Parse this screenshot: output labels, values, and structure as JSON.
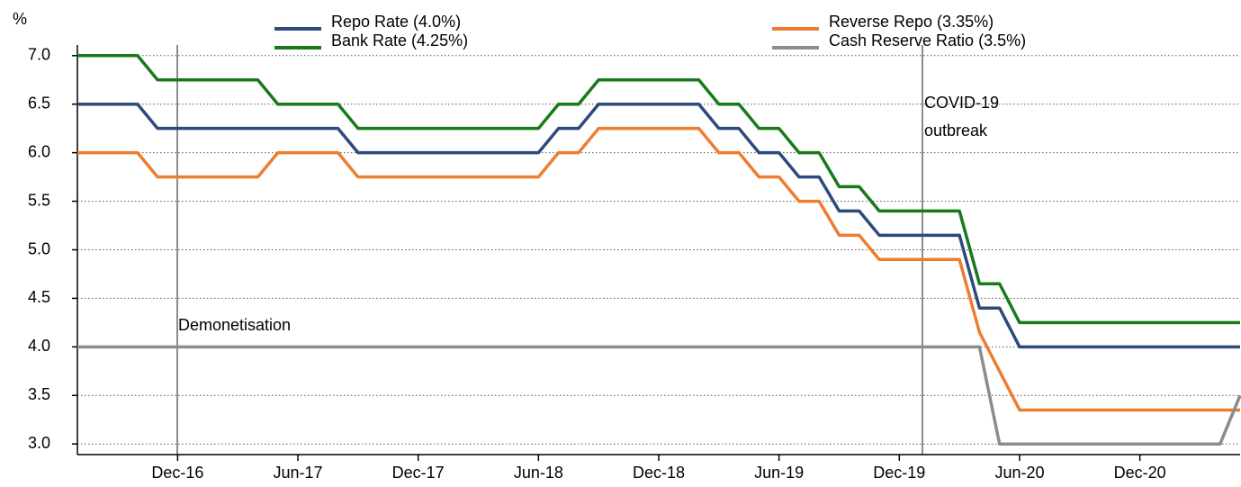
{
  "chart_data": {
    "type": "line",
    "y_label": "%",
    "categories": [
      null,
      null,
      null,
      null,
      null,
      "Dec-16",
      null,
      null,
      null,
      null,
      null,
      "Jun-17",
      null,
      null,
      null,
      null,
      null,
      "Dec-17",
      null,
      null,
      null,
      null,
      null,
      "Jun-18",
      null,
      null,
      null,
      null,
      null,
      "Dec-18",
      null,
      null,
      null,
      null,
      null,
      "Jun-19",
      null,
      null,
      null,
      null,
      null,
      "Dec-19",
      null,
      null,
      null,
      null,
      null,
      "Jun-20",
      null,
      null,
      null,
      null,
      null,
      "Dec-20",
      null,
      null,
      null,
      null,
      null
    ],
    "series": [
      {
        "name": "Repo Rate (4.0%)",
        "color": "#2e4a7d",
        "values": [
          6.5,
          6.5,
          6.5,
          6.5,
          6.25,
          6.25,
          6.25,
          6.25,
          6.25,
          6.25,
          6.25,
          6.25,
          6.25,
          6.25,
          6.0,
          6.0,
          6.0,
          6.0,
          6.0,
          6.0,
          6.0,
          6.0,
          6.0,
          6.0,
          6.25,
          6.25,
          6.5,
          6.5,
          6.5,
          6.5,
          6.5,
          6.5,
          6.25,
          6.25,
          6.0,
          6.0,
          5.75,
          5.75,
          5.4,
          5.4,
          5.15,
          5.15,
          5.15,
          5.15,
          5.15,
          4.4,
          4.4,
          4.0,
          4.0,
          4.0,
          4.0,
          4.0,
          4.0,
          4.0,
          4.0,
          4.0,
          4.0,
          4.0,
          4.0
        ]
      },
      {
        "name": "Bank Rate (4.25%)",
        "color": "#1a7a1a",
        "values": [
          7.0,
          7.0,
          7.0,
          7.0,
          6.75,
          6.75,
          6.75,
          6.75,
          6.75,
          6.75,
          6.5,
          6.5,
          6.5,
          6.5,
          6.25,
          6.25,
          6.25,
          6.25,
          6.25,
          6.25,
          6.25,
          6.25,
          6.25,
          6.25,
          6.5,
          6.5,
          6.75,
          6.75,
          6.75,
          6.75,
          6.75,
          6.75,
          6.5,
          6.5,
          6.25,
          6.25,
          6.0,
          6.0,
          5.65,
          5.65,
          5.4,
          5.4,
          5.4,
          5.4,
          5.4,
          4.65,
          4.65,
          4.25,
          4.25,
          4.25,
          4.25,
          4.25,
          4.25,
          4.25,
          4.25,
          4.25,
          4.25,
          4.25,
          4.25
        ]
      },
      {
        "name": "Reverse Repo (3.35%)",
        "color": "#ed7d31",
        "values": [
          6.0,
          6.0,
          6.0,
          6.0,
          5.75,
          5.75,
          5.75,
          5.75,
          5.75,
          5.75,
          6.0,
          6.0,
          6.0,
          6.0,
          5.75,
          5.75,
          5.75,
          5.75,
          5.75,
          5.75,
          5.75,
          5.75,
          5.75,
          5.75,
          6.0,
          6.0,
          6.25,
          6.25,
          6.25,
          6.25,
          6.25,
          6.25,
          6.0,
          6.0,
          5.75,
          5.75,
          5.5,
          5.5,
          5.15,
          5.15,
          4.9,
          4.9,
          4.9,
          4.9,
          4.9,
          4.15,
          3.75,
          3.35,
          3.35,
          3.35,
          3.35,
          3.35,
          3.35,
          3.35,
          3.35,
          3.35,
          3.35,
          3.35,
          3.35
        ]
      },
      {
        "name": "Cash Reserve Ratio (3.5%)",
        "color": "#8c8c8c",
        "values": [
          4.0,
          4.0,
          4.0,
          4.0,
          4.0,
          4.0,
          4.0,
          4.0,
          4.0,
          4.0,
          4.0,
          4.0,
          4.0,
          4.0,
          4.0,
          4.0,
          4.0,
          4.0,
          4.0,
          4.0,
          4.0,
          4.0,
          4.0,
          4.0,
          4.0,
          4.0,
          4.0,
          4.0,
          4.0,
          4.0,
          4.0,
          4.0,
          4.0,
          4.0,
          4.0,
          4.0,
          4.0,
          4.0,
          4.0,
          4.0,
          4.0,
          4.0,
          4.0,
          4.0,
          4.0,
          4.0,
          3.0,
          3.0,
          3.0,
          3.0,
          3.0,
          3.0,
          3.0,
          3.0,
          3.0,
          3.0,
          3.0,
          3.0,
          3.5
        ]
      }
    ],
    "ylim": [
      2.9,
      7.1
    ],
    "yticks": [
      {
        "value": 3,
        "label": "3.0"
      },
      {
        "value": 3.5,
        "label": "3.5"
      },
      {
        "value": 4,
        "label": "4.0"
      },
      {
        "value": 4.5,
        "label": "4.5"
      },
      {
        "value": 5,
        "label": "5.0"
      },
      {
        "value": 5.5,
        "label": "5.5"
      },
      {
        "value": 6,
        "label": "6.0"
      },
      {
        "value": 6.5,
        "label": "6.5"
      },
      {
        "value": 7,
        "label": "7.0"
      }
    ],
    "grid": true,
    "annotations": [
      [
        "Demonetisation"
      ],
      [
        "COVID-19",
        "outbreak"
      ]
    ]
  }
}
